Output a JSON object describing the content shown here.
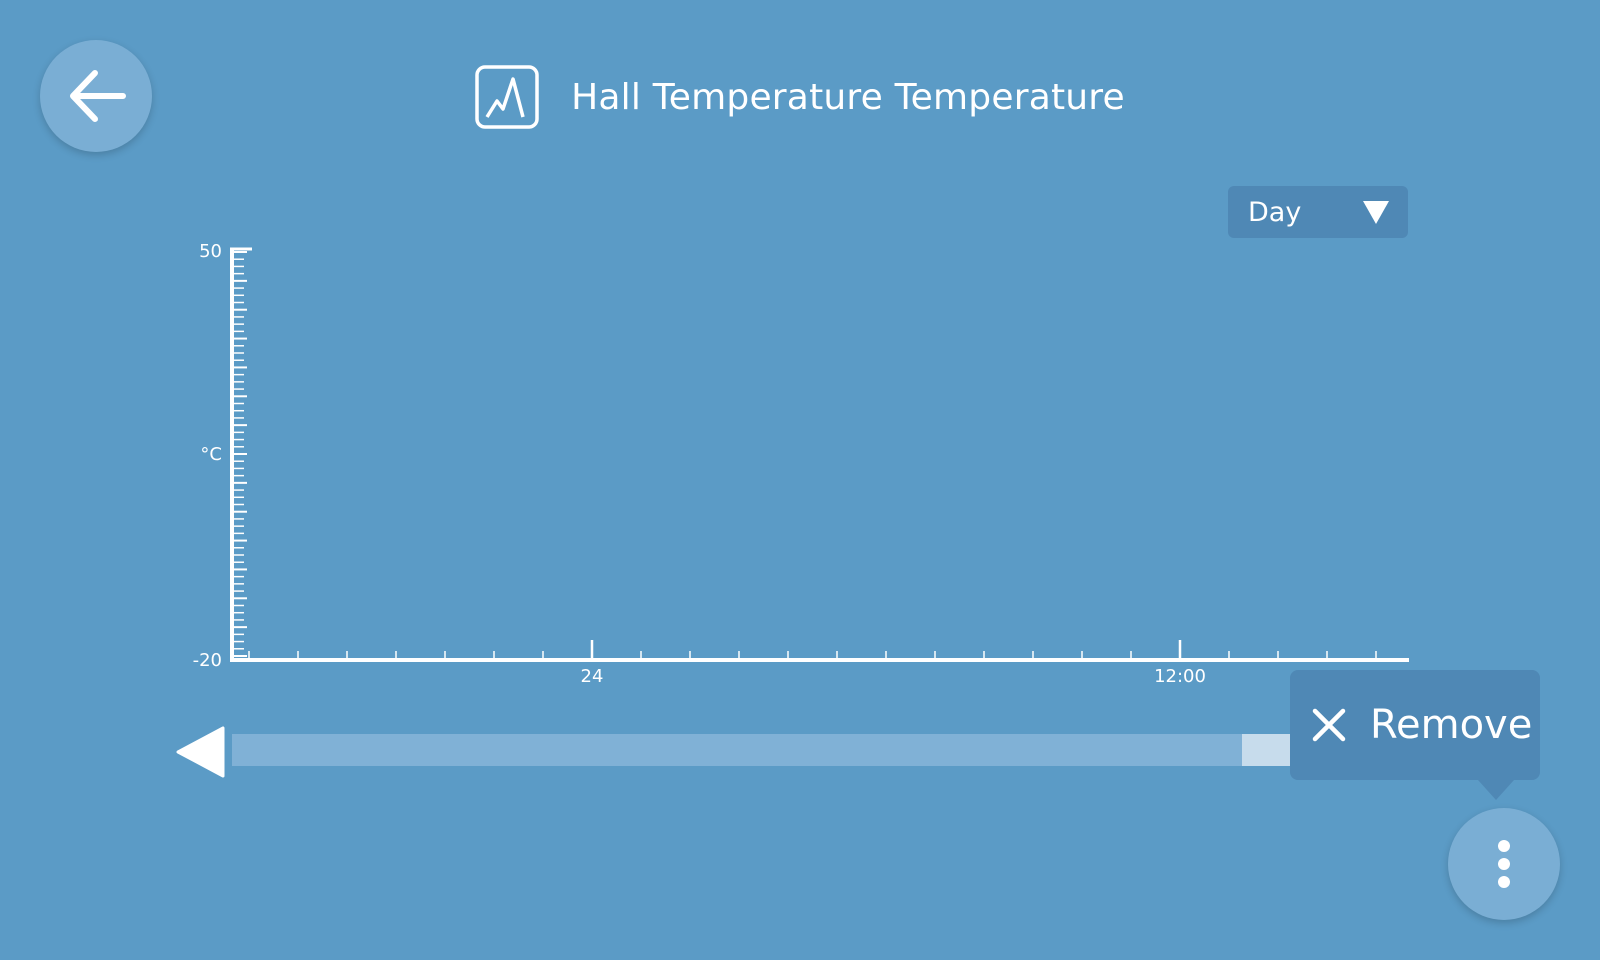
{
  "header": {
    "title": "Hall Temperature Temperature",
    "icon": "line-chart-icon"
  },
  "back_button": {
    "icon": "arrow-left-icon"
  },
  "range_select": {
    "selected": "Day",
    "icon": "triangle-down-icon"
  },
  "chart_data": {
    "type": "line",
    "title": "",
    "xlabel": "",
    "ylabel": "°C",
    "ylim": [
      -20,
      50
    ],
    "y_ticks_labeled": [
      "50",
      "-20"
    ],
    "x_tick_labels": [
      "24",
      "12:00"
    ],
    "series": [],
    "grid": false
  },
  "scrubber": {
    "prev_icon": "triangle-left-icon",
    "window_position": 0.955
  },
  "remove_popup": {
    "label": "Remove",
    "icon": "close-icon"
  },
  "menu_button": {
    "icon": "more-vertical-icon"
  },
  "colors": {
    "background": "#5b9bc6",
    "button": "#7aaed4",
    "panel": "#4f88b5",
    "track": "#80b1d6",
    "track_window": "#c7dcec",
    "foreground": "#ffffff"
  }
}
